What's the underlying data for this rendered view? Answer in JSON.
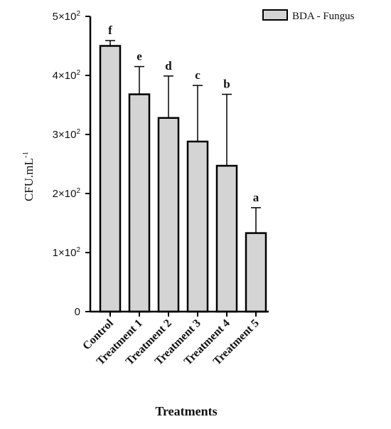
{
  "chart_data": {
    "type": "bar",
    "title": "",
    "xlabel": "Treatments",
    "ylabel": "CFU.mL",
    "ylabel_superscript": "-1",
    "ylim": [
      0,
      500
    ],
    "yticks": [
      {
        "value": 0,
        "mantissa": "0",
        "exp": ""
      },
      {
        "value": 100,
        "mantissa": "1×10",
        "exp": "2"
      },
      {
        "value": 200,
        "mantissa": "2×10",
        "exp": "2"
      },
      {
        "value": 300,
        "mantissa": "3×10",
        "exp": "2"
      },
      {
        "value": 400,
        "mantissa": "4×10",
        "exp": "2"
      },
      {
        "value": 500,
        "mantissa": "5×10",
        "exp": "2"
      }
    ],
    "categories": [
      "Control",
      "Treatment 1",
      "Treatment 2",
      "Treatment 3",
      "Treatment 4",
      "Treatment 5"
    ],
    "series": [
      {
        "name": "BDA - Fungus",
        "values": [
          450,
          368,
          328,
          288,
          247,
          133
        ],
        "error_upper": [
          9,
          47,
          71,
          95,
          121,
          43
        ],
        "significance_letters": [
          "f",
          "e",
          "d",
          "c",
          "b",
          "a"
        ]
      }
    ],
    "legend": {
      "position": "top-right"
    },
    "grid": false,
    "colors": {
      "bar_fill": "#d4d4d4",
      "bar_stroke": "#000000",
      "axis": "#000000"
    }
  }
}
